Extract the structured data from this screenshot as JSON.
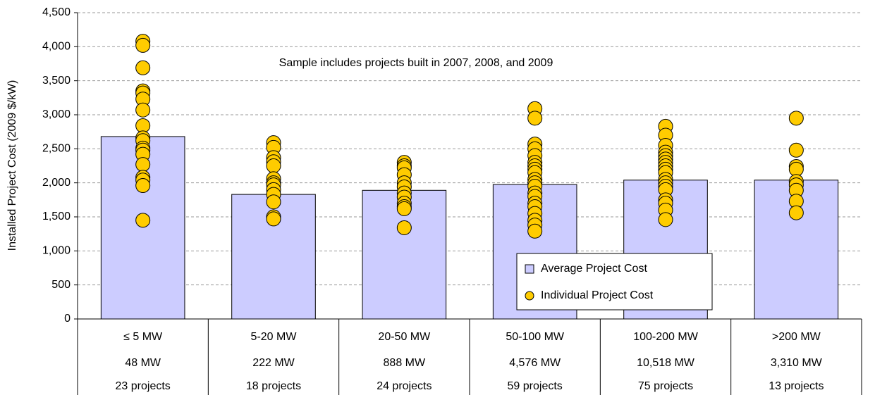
{
  "chart_data": {
    "type": "bar",
    "annotation": "Sample includes projects built in 2007, 2008, and 2009",
    "y_label": "Installed Project Cost (2009 $/kW)",
    "categories": [
      "≤ 5 MW",
      "5-20 MW",
      "20-50 MW",
      "50-100 MW",
      "100-200 MW",
      ">200 MW"
    ],
    "capacity": [
      "48 MW",
      "222 MW",
      "888 MW",
      "4,576 MW",
      "10,518 MW",
      "3,310 MW"
    ],
    "projects": [
      "23 projects",
      "18 projects",
      "24 projects",
      "59 projects",
      "75 projects",
      "13 projects"
    ],
    "series": [
      {
        "name": "Average Project Cost",
        "type": "bar",
        "color": "#ccccff",
        "values": [
          2680,
          1830,
          1890,
          1975,
          2040,
          2040
        ]
      },
      {
        "name": "Individual Project Cost",
        "type": "scatter",
        "color": "#ffcc00",
        "values": [
          [
            4080,
            4020,
            3690,
            3350,
            3320,
            3230,
            3070,
            2840,
            2660,
            2620,
            2510,
            2480,
            2420,
            2270,
            2080,
            2040,
            1960,
            1450
          ],
          [
            2590,
            2520,
            2370,
            2310,
            2250,
            2060,
            2000,
            1970,
            1900,
            1830,
            1720,
            1500,
            1470
          ],
          [
            2300,
            2250,
            2220,
            2120,
            2000,
            1940,
            1850,
            1790,
            1700,
            1650,
            1620,
            1340
          ],
          [
            3090,
            2950,
            2570,
            2500,
            2400,
            2300,
            2250,
            2200,
            2150,
            2050,
            2000,
            1950,
            1850,
            1800,
            1700,
            1650,
            1550,
            1450,
            1380,
            1290
          ],
          [
            2830,
            2700,
            2550,
            2450,
            2400,
            2350,
            2300,
            2250,
            2200,
            2150,
            2050,
            2000,
            1950,
            1900,
            1750,
            1700,
            1600,
            1460
          ],
          [
            2950,
            2480,
            2240,
            2200,
            2020,
            1970,
            1890,
            1730,
            1560
          ]
        ]
      }
    ],
    "ylim": [
      0,
      4500
    ],
    "yticks": [
      0,
      500,
      {
        "value": 1000,
        "label": "1,000"
      },
      {
        "value": 1500,
        "label": "1,500"
      },
      {
        "value": 2000,
        "label": "2,000"
      },
      {
        "value": 2500,
        "label": "2,500"
      },
      {
        "value": 3000,
        "label": "3,000"
      },
      {
        "value": 3500,
        "label": "3,500"
      },
      {
        "value": 4000,
        "label": "4,000"
      },
      {
        "value": 4500,
        "label": "4,500"
      }
    ],
    "grid": true,
    "legend": "lower right"
  }
}
